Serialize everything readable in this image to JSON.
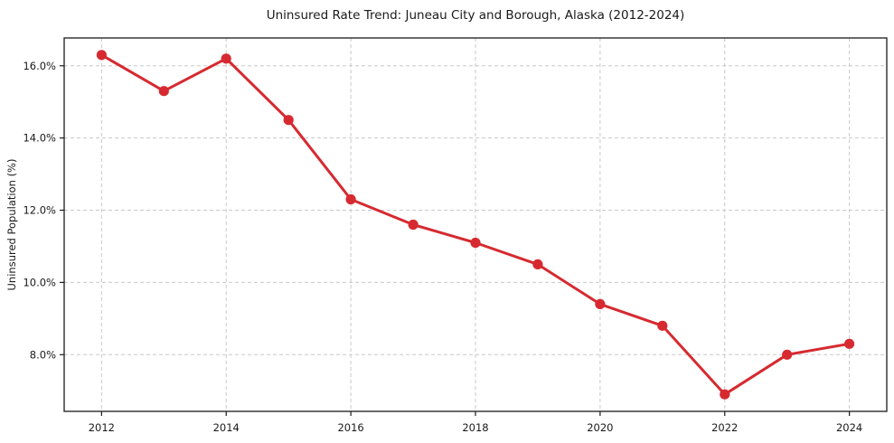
{
  "chart_data": {
    "type": "line",
    "title": "Uninsured Rate Trend: Juneau City and Borough, Alaska (2012-2024)",
    "xlabel": "",
    "ylabel": "Uninsured Population (%)",
    "x": [
      2012,
      2013,
      2014,
      2015,
      2016,
      2017,
      2018,
      2019,
      2020,
      2021,
      2022,
      2023,
      2024
    ],
    "values": [
      16.3,
      15.3,
      16.2,
      14.5,
      12.3,
      11.6,
      11.1,
      10.5,
      9.4,
      8.8,
      6.9,
      8.0,
      8.3
    ],
    "x_ticks": [
      2012,
      2014,
      2016,
      2018,
      2020,
      2022,
      2024
    ],
    "x_tick_labels": [
      "2012",
      "2014",
      "2016",
      "2018",
      "2020",
      "2022",
      "2024"
    ],
    "y_ticks": [
      8,
      10,
      12,
      14,
      16
    ],
    "y_tick_labels": [
      "8.0%",
      "10.0%",
      "12.0%",
      "14.0%",
      "16.0%"
    ],
    "xlim": [
      2011.4,
      2024.6
    ],
    "ylim": [
      6.43,
      16.77
    ],
    "grid": true,
    "legend": "none",
    "line_color": "#d62a30",
    "marker_color": "#d62a30",
    "grid_color": "#c9c9c9",
    "frame_color": "#1a1a1a",
    "background_color": "#ffffff"
  }
}
